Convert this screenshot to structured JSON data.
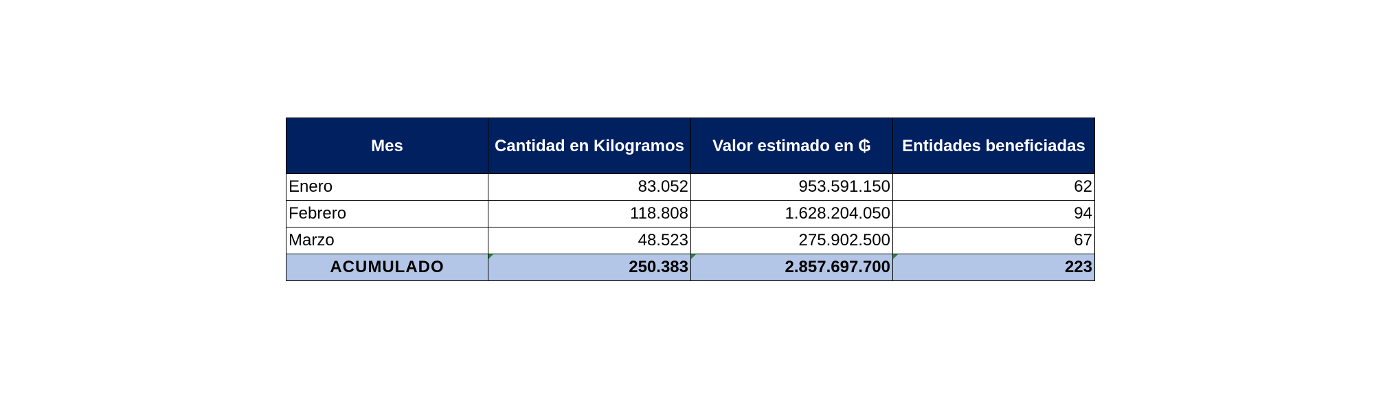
{
  "table": {
    "headers": [
      "Mes",
      "Cantidad en Kilogramos",
      "Valor estimado en ₲",
      "Entidades beneficiadas"
    ],
    "rows": [
      {
        "mes": "Enero",
        "kg": "83.052",
        "valor": "953.591.150",
        "entidades": "62"
      },
      {
        "mes": "Febrero",
        "kg": "118.808",
        "valor": "1.628.204.050",
        "entidades": "94"
      },
      {
        "mes": "Marzo",
        "kg": "48.523",
        "valor": "275.902.500",
        "entidades": "67"
      }
    ],
    "total": {
      "mes": "ACUMULADO",
      "kg": "250.383",
      "valor": "2.857.697.700",
      "entidades": "223"
    },
    "colors": {
      "header_bg": "#002060",
      "header_text": "#ffffff",
      "total_bg": "#b4c6e7",
      "indicator": "#1e8a2f"
    }
  }
}
